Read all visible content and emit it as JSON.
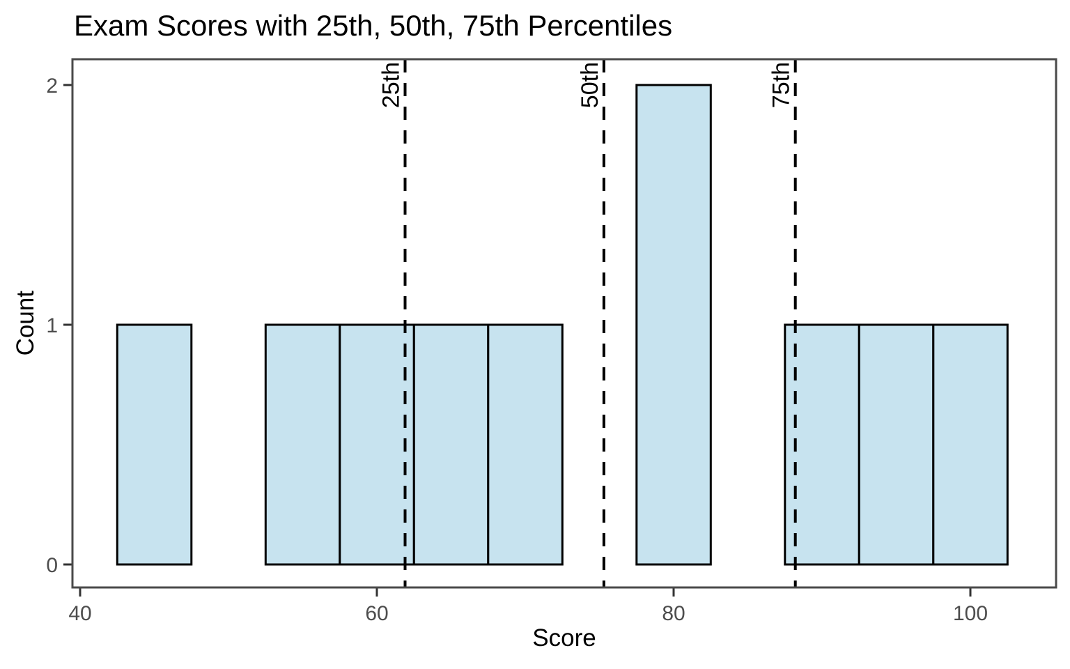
{
  "page": {
    "background": "#FFFFFF"
  },
  "chart_data": {
    "type": "bar",
    "subtype": "histogram",
    "title": "Exam Scores with 25th, 50th, 75th Percentiles",
    "xlabel": "Score",
    "ylabel": "Count",
    "x_ticks": [
      40,
      60,
      80,
      100
    ],
    "y_ticks": [
      0,
      1,
      2
    ],
    "xlim": [
      39.5,
      105.75
    ],
    "ylim": [
      -0.1,
      2.1
    ],
    "grid": "off",
    "legend_position": "none",
    "bin_width": 5,
    "bins": [
      {
        "x0": 42.5,
        "x1": 47.5,
        "count": 1
      },
      {
        "x0": 52.5,
        "x1": 57.5,
        "count": 1
      },
      {
        "x0": 57.5,
        "x1": 62.5,
        "count": 1
      },
      {
        "x0": 62.5,
        "x1": 67.5,
        "count": 1
      },
      {
        "x0": 67.5,
        "x1": 72.5,
        "count": 1
      },
      {
        "x0": 77.5,
        "x1": 82.5,
        "count": 2
      },
      {
        "x0": 87.5,
        "x1": 92.5,
        "count": 1
      },
      {
        "x0": 92.5,
        "x1": 97.5,
        "count": 1
      },
      {
        "x0": 97.5,
        "x1": 102.5,
        "count": 1
      }
    ],
    "percentile_lines": [
      {
        "label": "25th",
        "score": 61.9
      },
      {
        "label": "50th",
        "score": 75.3
      },
      {
        "label": "75th",
        "score": 88.2
      }
    ],
    "colors": {
      "bar_fill": "#C7E3EF",
      "bar_stroke": "#000000",
      "vline": "#000000",
      "vline_label": "#000000",
      "tick_label": "#4D4D4D",
      "tick_mark": "#333333",
      "panel_border": "#4A4A4A",
      "title": "#000000"
    }
  }
}
